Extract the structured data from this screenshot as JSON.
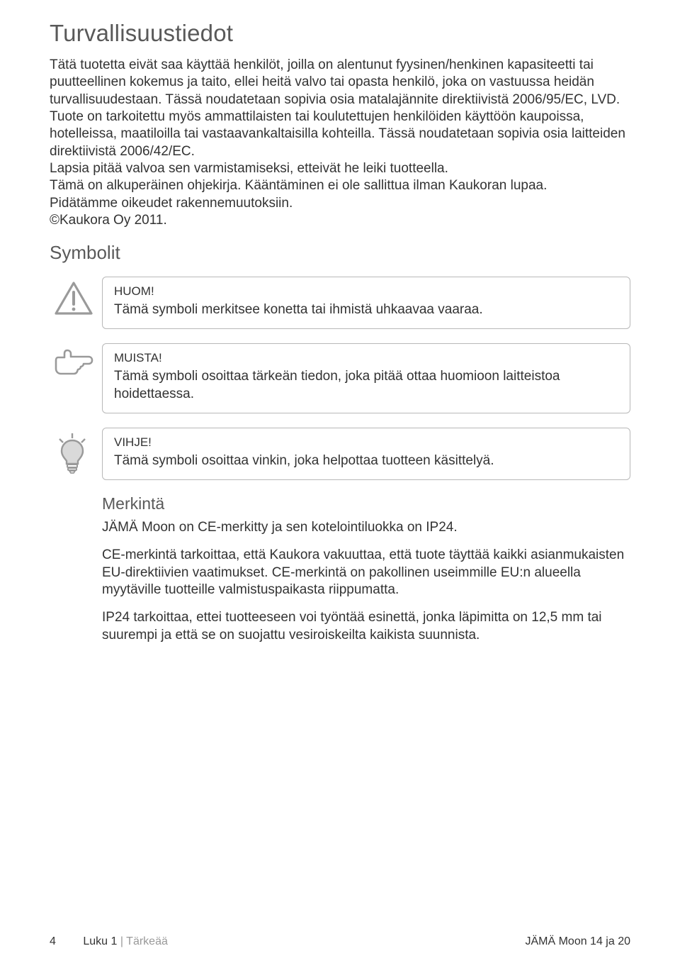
{
  "title": "Turvallisuustiedot",
  "body": "Tätä tuotetta eivät saa käyttää henkilöt, joilla on alentunut fyysinen/henkinen kapasiteetti tai puutteellinen kokemus ja taito, ellei heitä valvo tai opasta henkilö, joka on vastuussa heidän turvallisuudestaan. Tässä noudatetaan sopivia osia matalajännite direktiivistä 2006/95/EC, LVD. Tuote on tarkoitettu myös ammattilaisten tai koulutettujen henkilöiden käyttöön kaupoissa, hotelleissa, maatiloilla tai vastaavankaltaisilla kohteilla. Tässä noudatetaan sopivia osia laitteiden direktiivistä 2006/42/EC.\nLapsia pitää valvoa sen varmistamiseksi, etteivät he leiki tuotteella.\nTämä on alkuperäinen ohjekirja. Kääntäminen ei ole sallittua ilman Kaukoran lupaa.\nPidätämme oikeudet rakennemuutoksiin.\n©Kaukora Oy 2011.",
  "symbols_heading": "Symbolit",
  "callouts": [
    {
      "label": "HUOM!",
      "text": "Tämä symboli merkitsee konetta tai ihmistä uhkaavaa vaaraa."
    },
    {
      "label": "MUISTA!",
      "text": "Tämä symboli osoittaa tärkeän tiedon, joka pitää ottaa huomioon laitteistoa hoidettaessa."
    },
    {
      "label": "VIHJE!",
      "text": "Tämä symboli osoittaa vinkin, joka helpottaa tuotteen käsittelyä."
    }
  ],
  "marking": {
    "heading": "Merkintä",
    "p1": "JÄMÄ Moon on CE-merkitty ja sen kotelointiluokka on IP24.",
    "p2": "CE-merkintä tarkoittaa, että Kaukora vakuuttaa, että tuote täyttää kaikki asianmukaisten EU-direktiivien vaatimukset. CE-merkintä on pakollinen useimmille EU:n alueella myytäville tuotteille valmistuspaikasta riippumatta.",
    "p3": "IP24 tarkoittaa, ettei tuotteeseen voi työntää esinettä, jonka läpimitta on 12,5 mm tai suurempi ja että se on suojattu vesiroiskeilta kaikista suunnista."
  },
  "footer": {
    "page_num": "4",
    "chapter_prefix": "Luku 1",
    "chapter_sep": " | ",
    "chapter_title": "Tärkeää",
    "right": "JÄMÄ Moon 14 ja 20"
  },
  "colors": {
    "heading_grey": "#595959",
    "text": "#333333",
    "border": "#b8b8b8",
    "icon_grey": "#9a9a9a"
  }
}
